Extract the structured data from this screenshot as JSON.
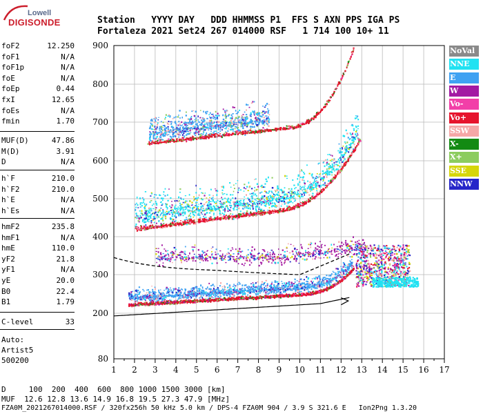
{
  "logo": {
    "line1": "Lowell",
    "line2": "DIGISONDE"
  },
  "header": {
    "labels": "Station   YYYY DAY   DDD HHMMSS P1  FFS S AXN PPS IGA PS",
    "values": "Fortaleza 2021 Set24 267 014000 RSF   1 714 100 10+ 11"
  },
  "params_group1": [
    {
      "label": "foF2",
      "value": "12.250"
    },
    {
      "label": "foF1",
      "value": "N/A"
    },
    {
      "label": "foF1p",
      "value": "N/A"
    },
    {
      "label": "foE",
      "value": "N/A"
    },
    {
      "label": "foEp",
      "value": "0.44"
    },
    {
      "label": "fxI",
      "value": "12.65"
    },
    {
      "label": "foEs",
      "value": "N/A"
    },
    {
      "label": "fmin",
      "value": "1.70"
    }
  ],
  "params_group2": [
    {
      "label": "MUF(D)",
      "value": "47.86"
    },
    {
      "label": "M(D)",
      "value": "3.91"
    },
    {
      "label": "D",
      "value": "N/A"
    }
  ],
  "params_group3": [
    {
      "label": "h`F",
      "value": "210.0"
    },
    {
      "label": "h`F2",
      "value": "210.0"
    },
    {
      "label": "h`E",
      "value": "N/A"
    },
    {
      "label": "h`Es",
      "value": "N/A"
    }
  ],
  "params_group4": [
    {
      "label": "hmF2",
      "value": "235.8"
    },
    {
      "label": "hmF1",
      "value": "N/A"
    },
    {
      "label": "hmE",
      "value": "110.0"
    },
    {
      "label": "yF2",
      "value": "21.8"
    },
    {
      "label": "yF1",
      "value": "N/A"
    },
    {
      "label": "yE",
      "value": "20.0"
    },
    {
      "label": "B0",
      "value": "22.4"
    },
    {
      "label": "B1",
      "value": "1.79"
    }
  ],
  "params_group5": [
    {
      "label": "C-level",
      "value": "33"
    }
  ],
  "auto_block": {
    "line1": "Auto:",
    "line2": "Artist5",
    "line3": "500200"
  },
  "legend": [
    {
      "label": "NoVal",
      "color": "#8a8a8a"
    },
    {
      "label": "NNE",
      "color": "#21e2f2"
    },
    {
      "label": "E",
      "color": "#3fa2f2"
    },
    {
      "label": "W",
      "color": "#a31aa3"
    },
    {
      "label": "Vo-",
      "color": "#f23fa8"
    },
    {
      "label": "Vo+",
      "color": "#e6142d"
    },
    {
      "label": "SSW",
      "color": "#f5a7a7"
    },
    {
      "label": "X-",
      "color": "#138a13"
    },
    {
      "label": "X+",
      "color": "#8ccc5e"
    },
    {
      "label": "SSE",
      "color": "#d6d60a"
    },
    {
      "label": "NNW",
      "color": "#2626c9"
    }
  ],
  "chart_data": {
    "type": "scatter",
    "x_ticks": [
      "1",
      "2",
      "3",
      "4",
      "5",
      "6",
      "7",
      "8",
      "9",
      "10",
      "11",
      "12",
      "13",
      "14",
      "15",
      "16",
      "17"
    ],
    "y_ticks": [
      "80",
      "200",
      "300",
      "400",
      "500",
      "600",
      "700",
      "800",
      "900"
    ],
    "xlim": [
      1,
      17
    ],
    "ylim_virtual_height_km": [
      80,
      900
    ],
    "y_scale": "nonlinear (ionogram height axis)",
    "grid": true,
    "clusters": [
      {
        "name": "F2 trace O",
        "color": "#e6142d",
        "points": [
          [
            1.7,
            225
          ],
          [
            3,
            228
          ],
          [
            5,
            232
          ],
          [
            7,
            236
          ],
          [
            9,
            242
          ],
          [
            10,
            248
          ],
          [
            11,
            258
          ],
          [
            12,
            275
          ],
          [
            12.5,
            300
          ],
          [
            13,
            345
          ]
        ]
      },
      {
        "name": "F2 second hop",
        "color": "#e6142d",
        "points": [
          [
            2,
            425
          ],
          [
            3,
            435
          ],
          [
            5,
            445
          ],
          [
            7,
            460
          ],
          [
            9,
            478
          ],
          [
            10,
            495
          ],
          [
            11,
            515
          ],
          [
            12,
            545
          ],
          [
            12.8,
            600
          ]
        ]
      },
      {
        "name": "F2 third hop",
        "color": "#e6142d",
        "points": [
          [
            2.6,
            650
          ],
          [
            4,
            658
          ],
          [
            6,
            665
          ],
          [
            8,
            675
          ],
          [
            10,
            695
          ],
          [
            11,
            725
          ],
          [
            12,
            770
          ],
          [
            12.6,
            850
          ]
        ]
      }
    ]
  },
  "footer": {
    "line1": "D     100  200  400  600  800 1000 1500 3000 [km]",
    "line2": "MUF  12.6 12.8 13.6 14.9 16.8 19.5 27.3 47.9 [MHz]",
    "line3": "FZA0M_2021267014000.RSF / 320fx256h 50 kHz 5.0 km / DPS-4 FZA0M 904 / 3.9 S 321.6 E   Ion2Png 1.3.20"
  }
}
